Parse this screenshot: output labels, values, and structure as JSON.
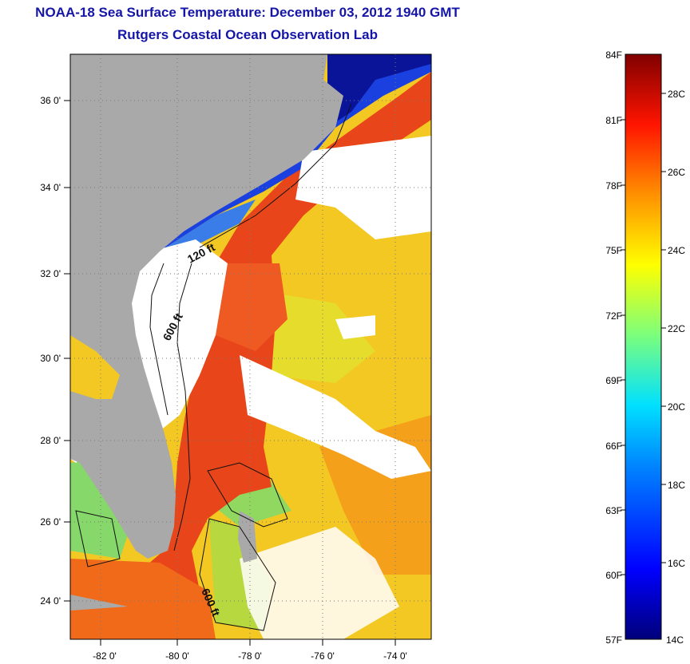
{
  "title": {
    "line1": "NOAA-18 Sea Surface Temperature:  December 03, 2012 1940 GMT",
    "line2": "Rutgers Coastal Ocean Observation Lab"
  },
  "map": {
    "lat_labels": [
      "36 0'",
      "34 0'",
      "32 0'",
      "30 0'",
      "28 0'",
      "26 0'",
      "24 0'"
    ],
    "lon_labels": [
      "-82 0'",
      "-80 0'",
      "-78 0'",
      "-76 0'",
      "-74 0'"
    ],
    "contour_labels": [
      "120 ft",
      "600 ft",
      "600 ft"
    ],
    "colors": {
      "land": "#a9a9a9",
      "cloud": "#ffffff",
      "cold_shelf": "#1a2fd8",
      "gulf_stream": "#e83a10",
      "warm": "#f48a18",
      "mid": "#f5d21c",
      "cool": "#7ad86a"
    }
  },
  "colorbar": {
    "f_labels": [
      "84F",
      "81F",
      "78F",
      "75F",
      "72F",
      "69F",
      "66F",
      "63F",
      "60F",
      "57F"
    ],
    "c_labels": [
      "28C",
      "26C",
      "24C",
      "22C",
      "20C",
      "18C",
      "16C",
      "14C"
    ]
  }
}
